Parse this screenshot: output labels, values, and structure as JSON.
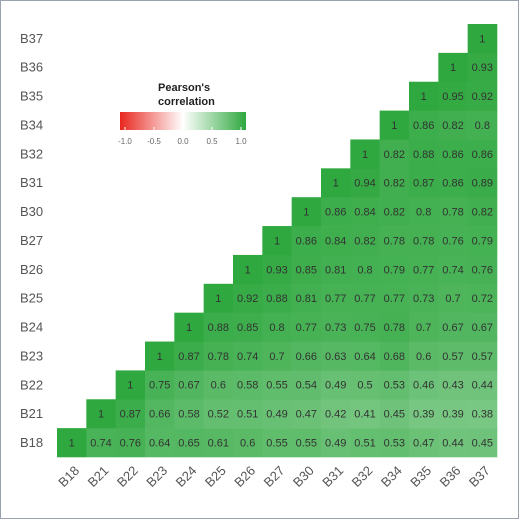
{
  "chart_data": {
    "type": "heatmap",
    "x_categories": [
      "B18",
      "B21",
      "B22",
      "B23",
      "B24",
      "B25",
      "B26",
      "B27",
      "B30",
      "B31",
      "B32",
      "B34",
      "B35",
      "B36",
      "B37"
    ],
    "y_categories": [
      "B18",
      "B21",
      "B22",
      "B23",
      "B24",
      "B25",
      "B26",
      "B27",
      "B30",
      "B31",
      "B32",
      "B34",
      "B35",
      "B36",
      "B37"
    ],
    "values": [
      [
        1,
        0.74,
        0.76,
        0.64,
        0.65,
        0.61,
        0.6,
        0.55,
        0.55,
        0.49,
        0.51,
        0.53,
        0.47,
        0.44,
        0.45
      ],
      [
        null,
        1,
        0.87,
        0.66,
        0.58,
        0.52,
        0.51,
        0.49,
        0.47,
        0.42,
        0.41,
        0.45,
        0.39,
        0.39,
        0.38
      ],
      [
        null,
        null,
        1,
        0.75,
        0.67,
        0.6,
        0.58,
        0.55,
        0.54,
        0.49,
        0.5,
        0.53,
        0.46,
        0.43,
        0.44
      ],
      [
        null,
        null,
        null,
        1,
        0.87,
        0.78,
        0.74,
        0.7,
        0.66,
        0.63,
        0.64,
        0.68,
        0.6,
        0.57,
        0.57
      ],
      [
        null,
        null,
        null,
        null,
        1,
        0.88,
        0.85,
        0.8,
        0.77,
        0.73,
        0.75,
        0.78,
        0.7,
        0.67,
        0.67
      ],
      [
        null,
        null,
        null,
        null,
        null,
        1,
        0.92,
        0.88,
        0.81,
        0.77,
        0.77,
        0.77,
        0.73,
        0.7,
        0.72
      ],
      [
        null,
        null,
        null,
        null,
        null,
        null,
        1,
        0.93,
        0.85,
        0.81,
        0.8,
        0.79,
        0.77,
        0.74,
        0.76
      ],
      [
        null,
        null,
        null,
        null,
        null,
        null,
        null,
        1,
        0.86,
        0.84,
        0.82,
        0.78,
        0.78,
        0.76,
        0.79
      ],
      [
        null,
        null,
        null,
        null,
        null,
        null,
        null,
        null,
        1,
        0.86,
        0.84,
        0.82,
        0.8,
        0.78,
        0.82
      ],
      [
        null,
        null,
        null,
        null,
        null,
        null,
        null,
        null,
        null,
        1,
        0.94,
        0.82,
        0.87,
        0.86,
        0.89
      ],
      [
        null,
        null,
        null,
        null,
        null,
        null,
        null,
        null,
        null,
        null,
        1,
        0.82,
        0.88,
        0.86,
        0.86
      ],
      [
        null,
        null,
        null,
        null,
        null,
        null,
        null,
        null,
        null,
        null,
        null,
        1,
        0.86,
        0.82,
        0.8
      ],
      [
        null,
        null,
        null,
        null,
        null,
        null,
        null,
        null,
        null,
        null,
        null,
        null,
        1,
        0.95,
        0.92
      ],
      [
        null,
        null,
        null,
        null,
        null,
        null,
        null,
        null,
        null,
        null,
        null,
        null,
        null,
        1,
        0.93
      ],
      [
        null,
        null,
        null,
        null,
        null,
        null,
        null,
        null,
        null,
        null,
        null,
        null,
        null,
        null,
        1
      ]
    ],
    "colorbar": {
      "title": [
        "Pearson's",
        "correlation"
      ],
      "lim": [
        -1,
        1
      ],
      "colors": [
        "#e8271f",
        "#ffffff",
        "#2fa83f"
      ],
      "ticks": [
        {
          "value": -1,
          "label": "-1.0"
        },
        {
          "value": -0.5,
          "label": "-0.5"
        },
        {
          "value": 0,
          "label": "0.0"
        },
        {
          "value": 0.5,
          "label": "0.5"
        },
        {
          "value": 1,
          "label": "1.0"
        }
      ]
    }
  }
}
